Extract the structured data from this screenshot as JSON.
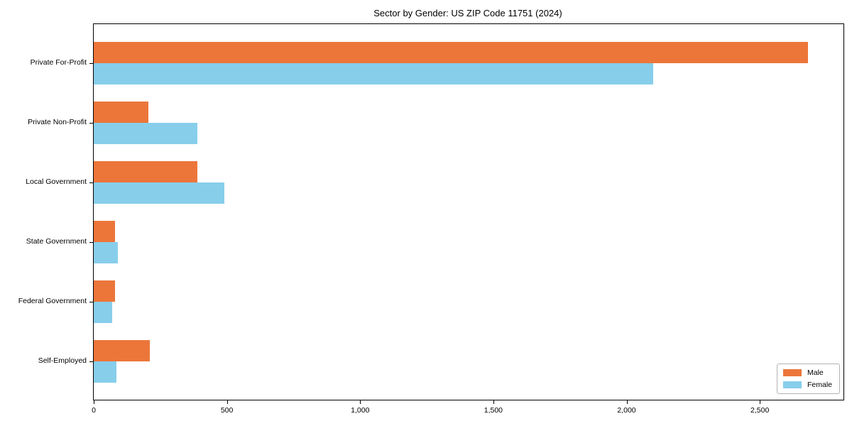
{
  "chart_data": {
    "type": "bar",
    "orientation": "horizontal",
    "title": "Sector by Gender: US ZIP Code 11751 (2024)",
    "categories": [
      "Private For-Profit",
      "Private Non-Profit",
      "Local Government",
      "State Government",
      "Federal Government",
      "Self-Employed"
    ],
    "series": [
      {
        "name": "Male",
        "color": "#ec763a",
        "values": [
          2680,
          205,
          390,
          80,
          80,
          210
        ]
      },
      {
        "name": "Female",
        "color": "#87ceeb",
        "values": [
          2100,
          390,
          490,
          90,
          70,
          85
        ]
      }
    ],
    "xlabel": "",
    "ylabel": "",
    "xlim": [
      0,
      2814
    ],
    "xticks": [
      0,
      500,
      1000,
      1500,
      2000,
      2500
    ],
    "xtick_labels": [
      "0",
      "500",
      "1,000",
      "1,500",
      "2,000",
      "2,500"
    ],
    "grid": false,
    "legend_position": "lower right",
    "background_color": "#ffffff",
    "spine_color": "#000000"
  }
}
